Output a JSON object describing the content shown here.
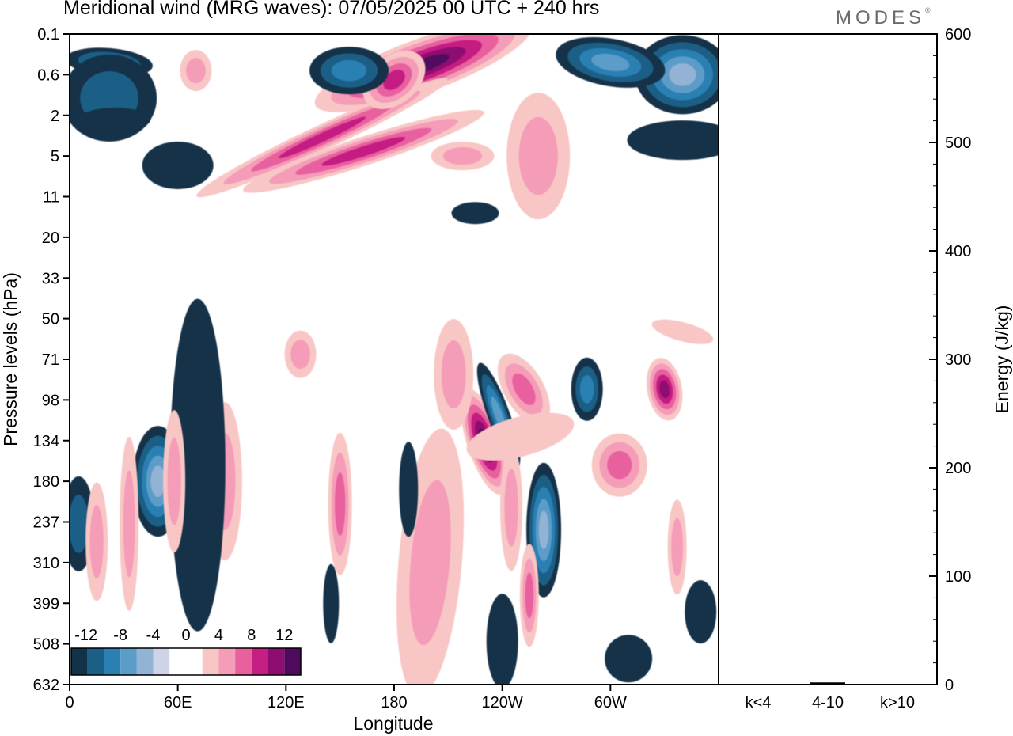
{
  "title": "Meridional wind (MRG waves):  07/05/2025  00 UTC  + 240 hrs",
  "logo": "MODES",
  "logo_mark": "®",
  "colors": {
    "negative": [
      "#12324a",
      "#1b5f86",
      "#2a7fb3",
      "#5b9cc8",
      "#93b3d5",
      "#cfd3e6"
    ],
    "positive": [
      "#f8c6c4",
      "#f49cb8",
      "#e8619e",
      "#c41f82",
      "#8d0e70",
      "#4f0a5e"
    ],
    "frame": "#000000"
  },
  "chart_data": [
    {
      "type": "heatmap",
      "title": "Meridional wind (MRG waves):  07/05/2025  00 UTC  + 240 hrs",
      "xlabel": "Longitude",
      "ylabel": "Pressure levels (hPa)",
      "x_ticks": [
        "0",
        "60E",
        "120E",
        "180",
        "120W",
        "60W"
      ],
      "y_ticks": [
        "0.1",
        "0.6",
        "2",
        "5",
        "11",
        "20",
        "33",
        "50",
        "71",
        "98",
        "134",
        "180",
        "237",
        "310",
        "399",
        "508",
        "632"
      ],
      "y_scale": "log",
      "colorbar": {
        "labels": [
          "-12",
          "-8",
          "-4",
          "0",
          "4",
          "8",
          "12"
        ],
        "levels": [
          -14,
          -12,
          -10,
          -8,
          -6,
          -4,
          -2,
          2,
          4,
          6,
          8,
          10,
          12,
          14
        ]
      },
      "features": [
        {
          "lon": 196,
          "p": 0.4,
          "value": 15,
          "sign": "positive"
        },
        {
          "lon": 180,
          "p": 0.7,
          "value": 8,
          "sign": "positive"
        },
        {
          "lon": 155,
          "p": 0.5,
          "value": -7,
          "sign": "negative"
        },
        {
          "lon": 163,
          "p": 4.5,
          "value": 8,
          "sign": "positive"
        },
        {
          "lon": 340,
          "p": 0.6,
          "value": -12,
          "sign": "negative"
        },
        {
          "lon": 300,
          "p": 0.35,
          "value": -8,
          "sign": "negative"
        },
        {
          "lon": 22,
          "p": 0.35,
          "value": -6,
          "sign": "negative"
        },
        {
          "lon": 230,
          "p": 135,
          "value": 13,
          "sign": "positive"
        },
        {
          "lon": 238,
          "p": 110,
          "value": -8,
          "sign": "negative"
        },
        {
          "lon": 263,
          "p": 250,
          "value": -11,
          "sign": "negative"
        },
        {
          "lon": 49,
          "p": 180,
          "value": -11,
          "sign": "negative"
        },
        {
          "lon": 330,
          "p": 90,
          "value": 10,
          "sign": "positive"
        },
        {
          "lon": 287,
          "p": 90,
          "value": -6,
          "sign": "negative"
        },
        {
          "lon": 252,
          "p": 90,
          "value": 6,
          "sign": "positive"
        },
        {
          "lon": 200,
          "p": 310,
          "value": 4,
          "sign": "positive"
        },
        {
          "lon": 86,
          "p": 180,
          "value": 4,
          "sign": "positive"
        },
        {
          "lon": 255,
          "p": 380,
          "value": 6,
          "sign": "positive"
        }
      ]
    },
    {
      "type": "bar",
      "ylabel": "Energy (J/kg)",
      "categories": [
        "k<4",
        "4-10",
        "k>10"
      ],
      "values": [
        0.5,
        2,
        0.5
      ],
      "ylim": [
        0,
        600
      ],
      "y_ticks": [
        "0",
        "100",
        "200",
        "300",
        "400",
        "500",
        "600"
      ]
    }
  ]
}
